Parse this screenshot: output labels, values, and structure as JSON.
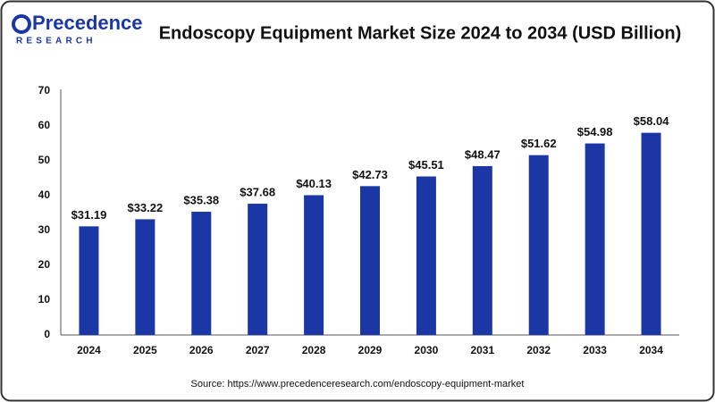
{
  "logo": {
    "name": "Precedence",
    "tagline": "RESEARCH"
  },
  "chart_data": {
    "type": "bar",
    "title": "Endoscopy Equipment Market Size 2024 to 2034 (USD Billion)",
    "source": "Source: https://www.precedenceresearch.com/endoscopy-equipment-market",
    "categories": [
      "2024",
      "2025",
      "2026",
      "2027",
      "2028",
      "2029",
      "2030",
      "2031",
      "2032",
      "2033",
      "2034"
    ],
    "values": [
      31.19,
      33.22,
      35.38,
      37.68,
      40.13,
      42.73,
      45.51,
      48.47,
      51.62,
      54.98,
      58.04
    ],
    "value_labels": [
      "$31.19",
      "$33.22",
      "$35.38",
      "$37.68",
      "$40.13",
      "$42.73",
      "$45.51",
      "$48.47",
      "$51.62",
      "$54.98",
      "$58.04"
    ],
    "color": "#1b37a6",
    "ylim": [
      0,
      70
    ],
    "yticks": [
      0,
      10,
      20,
      30,
      40,
      50,
      60,
      70
    ],
    "grid": false
  }
}
